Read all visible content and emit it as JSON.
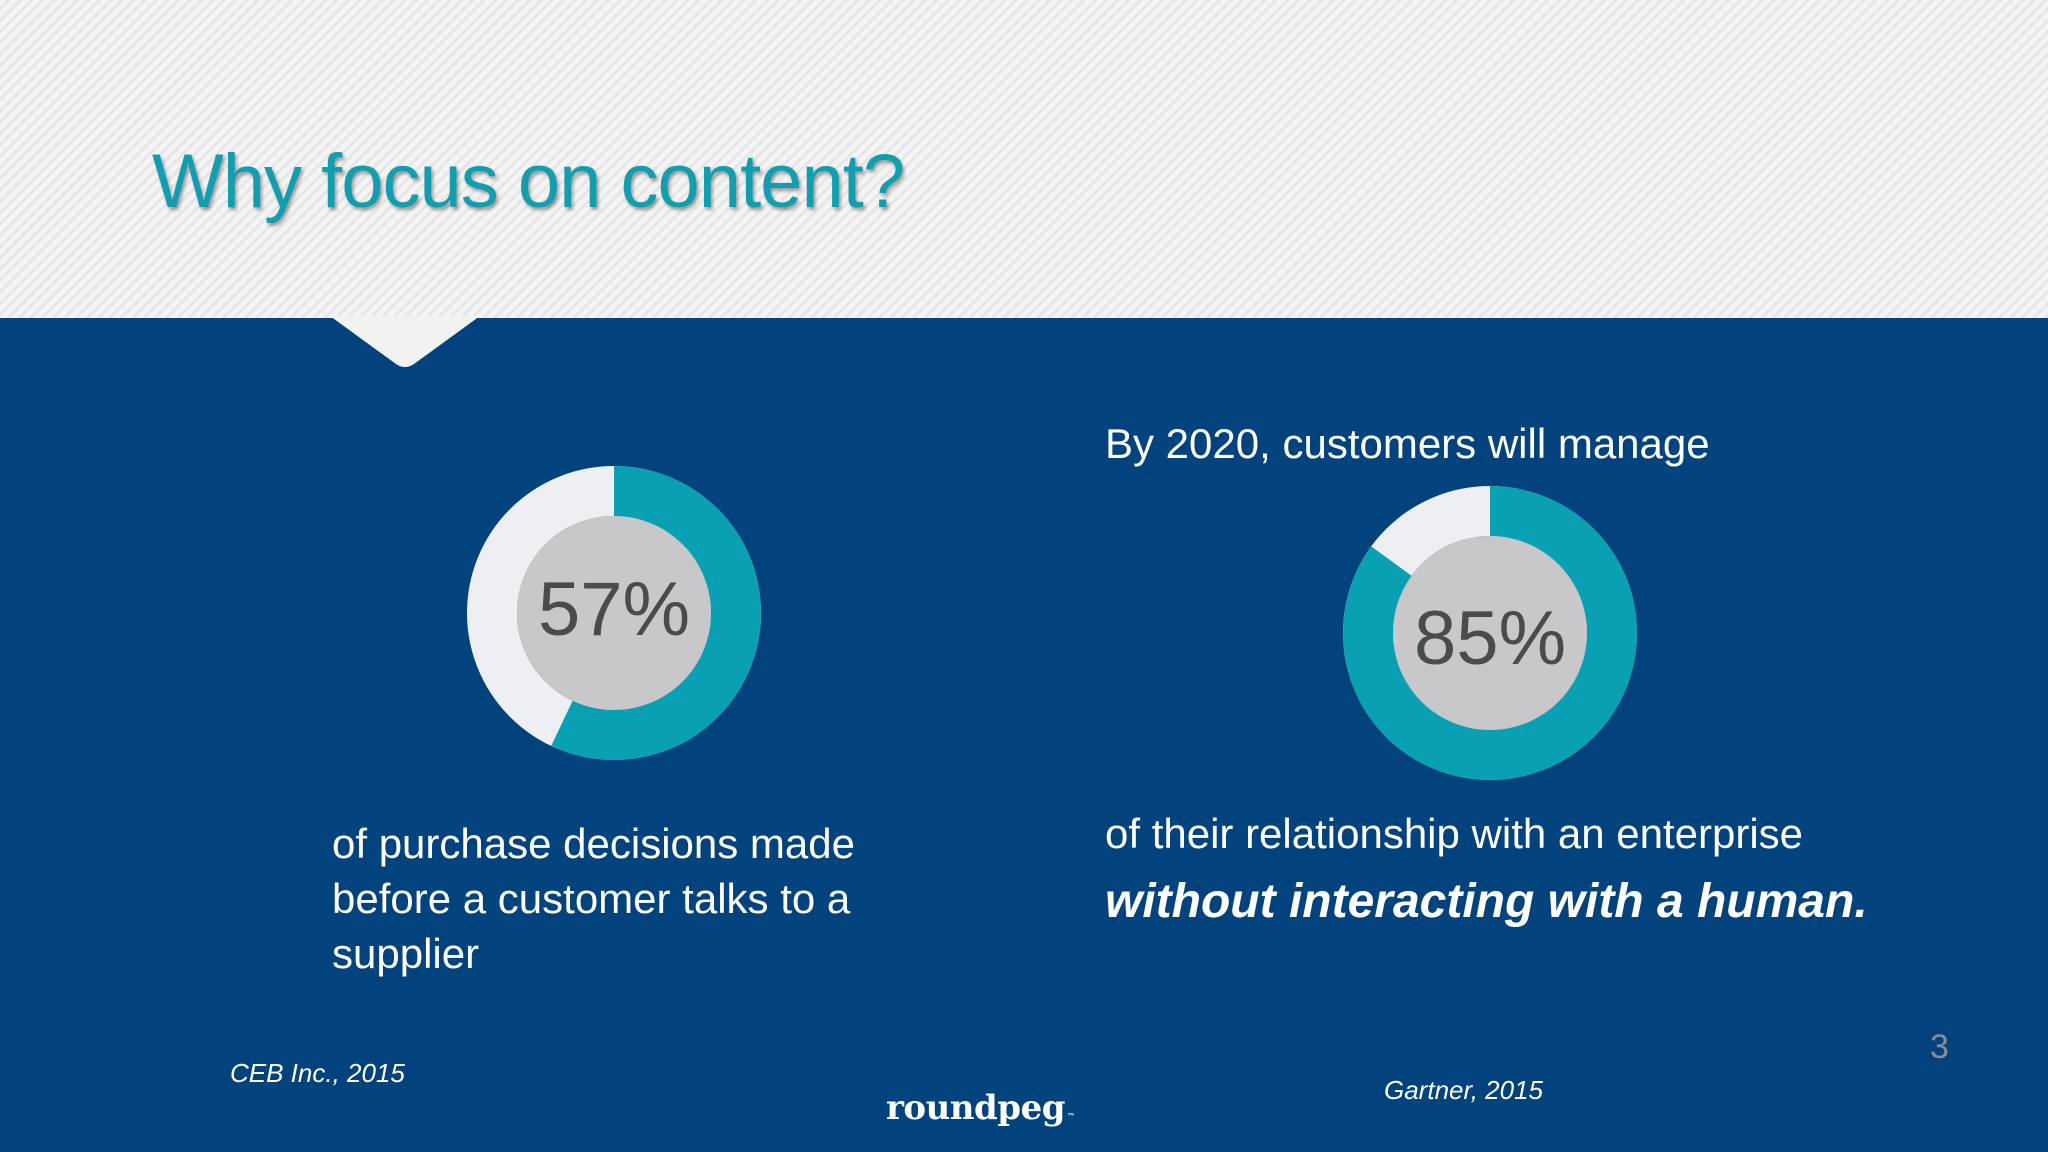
{
  "slide": {
    "title": "Why focus on content?",
    "page_number": "3",
    "logo_text": "roundpeg",
    "logo_mark": "™"
  },
  "colors": {
    "accent_teal": "#08a0b2",
    "background_navy": "#03437d",
    "ring_remainder": "#eeeff3",
    "center_circle": "#c8c8ca",
    "header_bg": "#f1f1f2"
  },
  "stats": [
    {
      "value_label": "57%",
      "percent": 57,
      "caption_lines": [
        "of purchase decisions made",
        "before a customer talks to a",
        "supplier"
      ],
      "source": "CEB Inc., 2015"
    },
    {
      "intro": "By 2020, customers will manage",
      "value_label": "85%",
      "percent": 85,
      "caption_plain": "of their relationship with an enterprise",
      "caption_emphasis": "without interacting with a human.",
      "source": "Gartner, 2015"
    }
  ]
}
